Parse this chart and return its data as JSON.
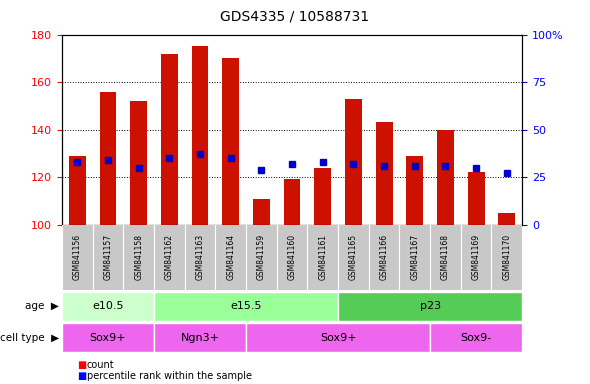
{
  "title": "GDS4335 / 10588731",
  "samples": [
    "GSM841156",
    "GSM841157",
    "GSM841158",
    "GSM841162",
    "GSM841163",
    "GSM841164",
    "GSM841159",
    "GSM841160",
    "GSM841161",
    "GSM841165",
    "GSM841166",
    "GSM841167",
    "GSM841168",
    "GSM841169",
    "GSM841170"
  ],
  "bar_values": [
    129,
    156,
    152,
    172,
    175,
    170,
    111,
    119,
    124,
    153,
    143,
    129,
    140,
    122,
    105
  ],
  "dot_pct": [
    33,
    34,
    30,
    35,
    37,
    35,
    29,
    32,
    33,
    32,
    31,
    31,
    31,
    30,
    27
  ],
  "ylim_left": [
    100,
    180
  ],
  "ylim_right": [
    0,
    100
  ],
  "yticks_left": [
    100,
    120,
    140,
    160,
    180
  ],
  "yticks_right": [
    0,
    25,
    50,
    75,
    100
  ],
  "age_groups": [
    {
      "label": "e10.5",
      "start": 0,
      "end": 3,
      "color": "#ccffcc"
    },
    {
      "label": "e15.5",
      "start": 3,
      "end": 9,
      "color": "#99ff99"
    },
    {
      "label": "p23",
      "start": 9,
      "end": 15,
      "color": "#55cc55"
    }
  ],
  "cell_groups": [
    {
      "label": "Sox9+",
      "start": 0,
      "end": 3
    },
    {
      "label": "Ngn3+",
      "start": 3,
      "end": 6
    },
    {
      "label": "Sox9+",
      "start": 6,
      "end": 12
    },
    {
      "label": "Sox9-",
      "start": 12,
      "end": 15
    }
  ],
  "bar_color": "#cc1100",
  "dot_color": "#0000cc",
  "bar_bottom": 100,
  "gray_bg": "#c8c8c8",
  "cell_color": "#ee66ee",
  "title_fontsize": 10,
  "tick_fontsize": 8
}
